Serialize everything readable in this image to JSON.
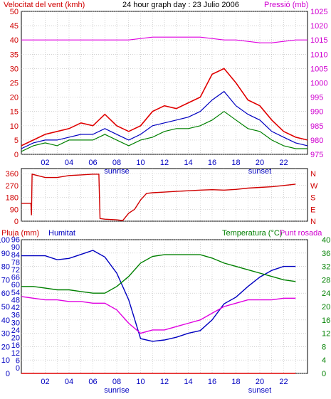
{
  "header": {
    "left_label": "Velocitat del vent (kmh)",
    "title": "24 hour graph day : 23 Julio 2006",
    "right_label": "Pressió (mb)"
  },
  "colors": {
    "wind": "#e00000",
    "wind_avg": "#0000c0",
    "gust": "#008000",
    "pressure": "#e000e0",
    "direction": "#d00000",
    "rain": "#e00000",
    "humidity": "#0000c0",
    "temperature": "#008000",
    "dewpoint": "#e000e0",
    "text_red": "#d00000",
    "text_blue": "#0000c0",
    "text_green": "#008000",
    "text_magenta": "#d000d0"
  },
  "chart_data": [
    {
      "type": "line",
      "name_key": "wind",
      "xlim": [
        0,
        24
      ],
      "x_ticks": [
        "02",
        "04",
        "06",
        "08",
        "10",
        "12",
        "14",
        "16",
        "18",
        "20",
        "22"
      ],
      "x_tick_values": [
        2,
        4,
        6,
        8,
        10,
        12,
        14,
        16,
        18,
        20,
        22
      ],
      "sunrise_label": "sunrise",
      "sunset_label": "sunset",
      "sunrise_x": 8,
      "sunset_x": 20,
      "ylim_left": [
        0,
        50
      ],
      "y_ticks_left": [
        "0",
        "5",
        "10",
        "15",
        "20",
        "25",
        "30",
        "35",
        "40",
        "45",
        "50"
      ],
      "ylim_right": [
        975,
        1025
      ],
      "y_ticks_right": [
        "975",
        "980",
        "985",
        "990",
        "995",
        "1000",
        "1005",
        "1010",
        "1015",
        "1020",
        "1025"
      ],
      "x": [
        0,
        1,
        2,
        3,
        4,
        5,
        6,
        7,
        8,
        9,
        10,
        11,
        12,
        13,
        14,
        15,
        16,
        17,
        18,
        19,
        20,
        21,
        22,
        23,
        24
      ],
      "series": [
        {
          "key": "wind",
          "values": [
            3,
            5,
            7,
            8,
            9,
            11,
            10,
            14,
            10,
            8,
            10,
            15,
            17,
            16,
            18,
            20,
            28,
            30,
            25,
            19,
            17,
            12,
            8,
            6,
            5
          ]
        },
        {
          "key": "wind_avg",
          "values": [
            2,
            4,
            5,
            5,
            6,
            7,
            7,
            9,
            7,
            5,
            7,
            10,
            11,
            12,
            13,
            15,
            19,
            22,
            17,
            14,
            12,
            8,
            6,
            4,
            3
          ]
        },
        {
          "key": "gust",
          "values": [
            1,
            3,
            4,
            3,
            5,
            5,
            5,
            7,
            5,
            3,
            5,
            6,
            8,
            9,
            9,
            10,
            12,
            15,
            12,
            9,
            8,
            5,
            3,
            2,
            2
          ]
        },
        {
          "key": "pressure",
          "values": [
            1015,
            1015,
            1015,
            1015,
            1015,
            1015,
            1015,
            1015,
            1015,
            1015,
            1015.5,
            1016,
            1016,
            1016,
            1016,
            1016,
            1015.5,
            1015,
            1015,
            1014.5,
            1014,
            1014,
            1014.5,
            1015,
            1015
          ]
        }
      ]
    },
    {
      "type": "line",
      "name_key": "direction",
      "xlim": [
        0,
        24
      ],
      "ylim": [
        0,
        360
      ],
      "y_ticks_left": [
        "0",
        "90",
        "180",
        "270",
        "360"
      ],
      "y_ticks_right": [
        "N",
        "E",
        "S",
        "W",
        "N"
      ],
      "x": [
        0,
        0.8,
        0.85,
        0.9,
        2,
        3,
        4,
        5,
        6,
        6.5,
        6.6,
        7,
        8,
        8.5,
        9,
        9.5,
        10,
        10.5,
        11,
        12,
        13,
        14,
        15,
        16,
        17,
        18,
        19,
        20,
        21,
        22,
        23
      ],
      "series": [
        {
          "key": "direction",
          "values": [
            135,
            135,
            45,
            355,
            330,
            330,
            345,
            350,
            355,
            355,
            20,
            15,
            10,
            5,
            60,
            90,
            160,
            210,
            215,
            220,
            225,
            230,
            235,
            238,
            235,
            240,
            250,
            255,
            260,
            270,
            280
          ]
        }
      ]
    },
    {
      "type": "line",
      "name_key": "atmosphere",
      "xlim": [
        0,
        24
      ],
      "ylim_left": [
        0,
        100
      ],
      "y_ticks_left": [
        "0",
        "10",
        "20",
        "30",
        "40",
        "50",
        "60",
        "70",
        "80",
        "90",
        "100"
      ],
      "y_ticks_mid": [
        "0",
        "6",
        "12",
        "16",
        "20",
        "24",
        "30",
        "36",
        "42",
        "48",
        "54",
        "60",
        "66",
        "72",
        "78",
        "84",
        "90",
        "96"
      ],
      "ylim_right": [
        0,
        40
      ],
      "y_ticks_right": [
        "0",
        "4",
        "8",
        "12",
        "16",
        "20",
        "24",
        "28",
        "32",
        "36",
        "40"
      ],
      "labels": {
        "rain": "Pluja (mm)",
        "humidity": "Humitat",
        "temperature": "Temperatura (°C)",
        "dewpoint": "Punt rosada"
      },
      "x": [
        0,
        1,
        2,
        3,
        4,
        5,
        6,
        7,
        8,
        9,
        10,
        11,
        12,
        13,
        14,
        15,
        16,
        17,
        18,
        19,
        20,
        21,
        22,
        23
      ],
      "series": [
        {
          "key": "humidity",
          "values": [
            88,
            88,
            88,
            85,
            86,
            89,
            92,
            87,
            75,
            55,
            26,
            24,
            25,
            27,
            30,
            32,
            40,
            52,
            57,
            65,
            72,
            77,
            80,
            80
          ]
        },
        {
          "key": "temperature",
          "values": [
            26,
            26,
            25.5,
            25,
            25,
            24.5,
            24,
            24,
            26,
            29,
            33,
            35,
            35.5,
            35.5,
            35.5,
            35.5,
            34.5,
            33,
            32,
            31,
            30,
            29,
            28,
            27.5
          ]
        },
        {
          "key": "dewpoint",
          "values": [
            23,
            22.5,
            22,
            22,
            21.5,
            21.5,
            21,
            21,
            19,
            15,
            12,
            13,
            13,
            14,
            15,
            16,
            18,
            20,
            21,
            22,
            22,
            22,
            22.5,
            22.5
          ]
        },
        {
          "key": "rain",
          "values": [
            0,
            0,
            0,
            0,
            0,
            0,
            0,
            0,
            0,
            0,
            0,
            0,
            0,
            0,
            0,
            0,
            0,
            0,
            0,
            0,
            0,
            0,
            0,
            0
          ]
        }
      ]
    }
  ]
}
